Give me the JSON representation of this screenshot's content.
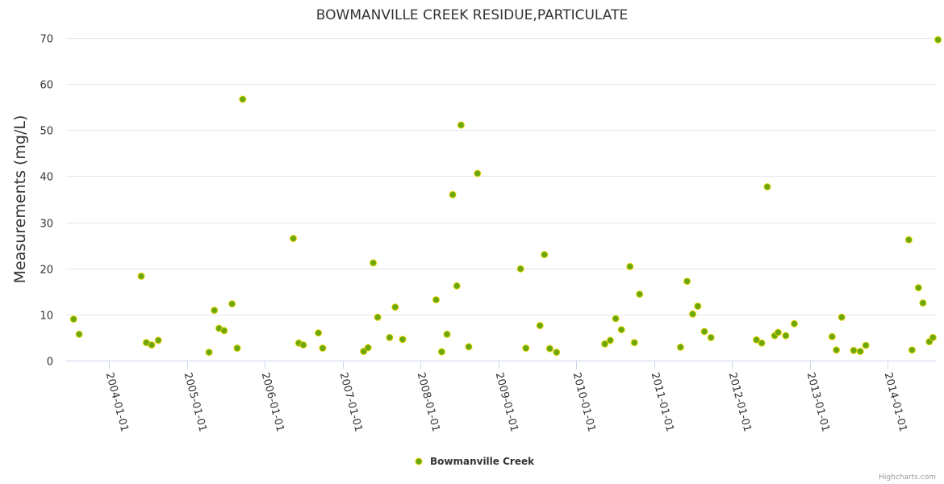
{
  "chart_data": {
    "type": "scatter",
    "title": "BOWMANVILLE CREEK RESIDUE,PARTICULATE",
    "xlabel": "",
    "ylabel": "Measurements (mg/L)",
    "ylim": [
      0,
      70
    ],
    "yticks": [
      0,
      10,
      20,
      30,
      40,
      50,
      60,
      70
    ],
    "xlim": [
      "2003-06-15",
      "2014-08-15"
    ],
    "xticks": [
      "2004-01-01",
      "2005-01-01",
      "2006-01-01",
      "2007-01-01",
      "2008-01-01",
      "2009-01-01",
      "2010-01-01",
      "2011-01-01",
      "2012-01-01",
      "2013-01-01",
      "2014-01-01"
    ],
    "grid": true,
    "legend_position": "bottom-center",
    "series": [
      {
        "name": "Bowmanville Creek",
        "color": "#6aa80c",
        "marker_fill": "#6aa80c",
        "marker_stroke": "#e6d100",
        "points": [
          [
            "2003-07-20",
            9
          ],
          [
            "2003-08-15",
            5.7
          ],
          [
            "2004-06-01",
            18.3
          ],
          [
            "2004-06-25",
            3.9
          ],
          [
            "2004-07-20",
            3.4
          ],
          [
            "2004-08-20",
            4.4
          ],
          [
            "2005-04-15",
            1.8
          ],
          [
            "2005-05-10",
            10.9
          ],
          [
            "2005-06-01",
            7.0
          ],
          [
            "2005-06-25",
            6.5
          ],
          [
            "2005-08-01",
            12.3
          ],
          [
            "2005-08-25",
            2.7
          ],
          [
            "2005-09-20",
            56.7
          ],
          [
            "2006-05-15",
            26.5
          ],
          [
            "2006-06-10",
            3.8
          ],
          [
            "2006-07-01",
            3.4
          ],
          [
            "2006-09-10",
            6.0
          ],
          [
            "2006-09-30",
            2.7
          ],
          [
            "2007-04-10",
            2.0
          ],
          [
            "2007-05-01",
            2.8
          ],
          [
            "2007-05-25",
            21.2
          ],
          [
            "2007-06-15",
            9.4
          ],
          [
            "2007-08-10",
            5.0
          ],
          [
            "2007-09-05",
            11.6
          ],
          [
            "2007-10-10",
            4.6
          ],
          [
            "2008-03-15",
            13.2
          ],
          [
            "2008-04-10",
            1.9
          ],
          [
            "2008-05-05",
            5.7
          ],
          [
            "2008-06-01",
            36.0
          ],
          [
            "2008-06-20",
            16.2
          ],
          [
            "2008-07-10",
            51.1
          ],
          [
            "2008-08-15",
            3.0
          ],
          [
            "2008-09-25",
            40.6
          ],
          [
            "2009-04-15",
            19.9
          ],
          [
            "2009-05-10",
            2.7
          ],
          [
            "2009-07-15",
            7.6
          ],
          [
            "2009-08-05",
            23.0
          ],
          [
            "2009-08-30",
            2.6
          ],
          [
            "2009-10-01",
            1.8
          ],
          [
            "2010-05-15",
            3.6
          ],
          [
            "2010-06-10",
            4.4
          ],
          [
            "2010-07-05",
            9.1
          ],
          [
            "2010-08-01",
            6.7
          ],
          [
            "2010-09-10",
            20.4
          ],
          [
            "2010-10-01",
            3.9
          ],
          [
            "2010-10-25",
            14.4
          ],
          [
            "2011-05-05",
            2.9
          ],
          [
            "2011-06-05",
            17.2
          ],
          [
            "2011-07-01",
            10.1
          ],
          [
            "2011-07-25",
            11.8
          ],
          [
            "2011-08-25",
            6.3
          ],
          [
            "2011-09-25",
            5.0
          ],
          [
            "2012-04-25",
            4.5
          ],
          [
            "2012-05-20",
            3.8
          ],
          [
            "2012-06-15",
            37.7
          ],
          [
            "2012-07-20",
            5.4
          ],
          [
            "2012-08-05",
            6.1
          ],
          [
            "2012-09-10",
            5.4
          ],
          [
            "2012-10-20",
            8.0
          ],
          [
            "2013-04-15",
            5.2
          ],
          [
            "2013-05-05",
            2.3
          ],
          [
            "2013-05-30",
            9.4
          ],
          [
            "2013-07-25",
            2.2
          ],
          [
            "2013-08-25",
            2.0
          ],
          [
            "2013-09-20",
            3.3
          ],
          [
            "2014-04-10",
            26.2
          ],
          [
            "2014-04-25",
            2.3
          ],
          [
            "2014-05-25",
            15.8
          ],
          [
            "2014-06-15",
            12.5
          ],
          [
            "2014-07-15",
            4.1
          ],
          [
            "2014-08-01",
            5.0
          ],
          [
            "2014-08-25",
            69.6
          ]
        ]
      }
    ]
  },
  "legend": {
    "label": "Bowmanville Creek"
  },
  "credits": {
    "text": "Highcharts.com"
  }
}
